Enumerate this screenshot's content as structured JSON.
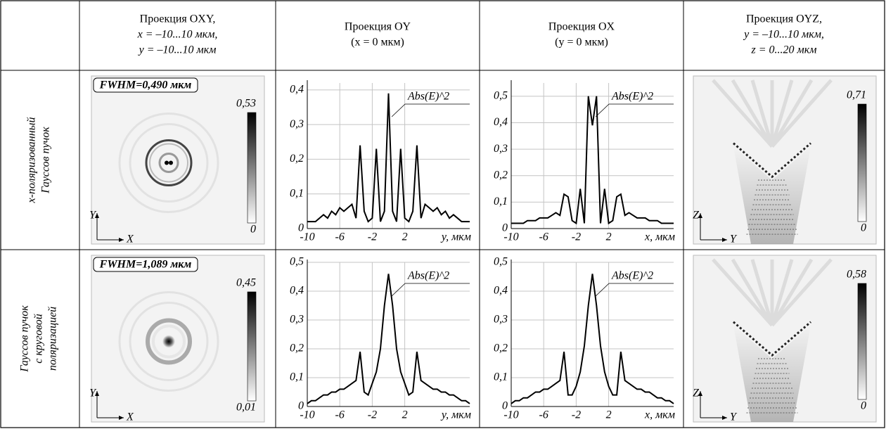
{
  "header": {
    "columns": [
      [
        "Проекция OXY,",
        "x = –10...10 мкм,",
        "y = –10...10 мкм"
      ],
      [
        "Проекция OY",
        "(x = 0 мкм)"
      ],
      [
        "Проекция OX",
        "(y = 0 мкм)"
      ],
      [
        "Проекция OYZ,",
        "y = –10...10 мкм,",
        "z = 0...20 мкм"
      ]
    ]
  },
  "rows": [
    {
      "label": [
        "x-поляризованный",
        "Гауссов пучок"
      ],
      "oxy": {
        "fwhm": "FWHM=0,490 мкм",
        "colorbar_max": "0,53",
        "colorbar_min": "0",
        "axis_x": "X",
        "axis_y": "Y"
      },
      "oy": {
        "type": "line",
        "color": "#000000",
        "legend": "Abs(E)^2",
        "x_label": "y, мкм",
        "x": [
          -10,
          -9.5,
          -9,
          -8.5,
          -8,
          -7.5,
          -7,
          -6.5,
          -6,
          -5.5,
          -5,
          -4.5,
          -4,
          -3.5,
          -3,
          -2.5,
          -2,
          -1.5,
          -1,
          -0.5,
          0,
          0.5,
          1,
          1.5,
          2,
          2.5,
          3,
          3.5,
          4,
          4.5,
          5,
          5.5,
          6,
          6.5,
          7,
          7.5,
          8,
          8.5,
          9,
          9.5,
          10
        ],
        "values": [
          0.02,
          0.02,
          0.02,
          0.03,
          0.04,
          0.03,
          0.05,
          0.04,
          0.06,
          0.05,
          0.06,
          0.07,
          0.03,
          0.24,
          0.05,
          0.02,
          0.03,
          0.23,
          0.02,
          0.05,
          0.39,
          0.05,
          0.02,
          0.23,
          0.03,
          0.02,
          0.05,
          0.24,
          0.03,
          0.07,
          0.06,
          0.05,
          0.06,
          0.04,
          0.05,
          0.03,
          0.04,
          0.03,
          0.02,
          0.02,
          0.02
        ],
        "xlim": [
          -10,
          10
        ],
        "ylim": [
          0,
          0.42
        ],
        "xticks": [
          -10,
          -6,
          -2,
          2
        ],
        "yticks": [
          0,
          {
            "value": 0.1,
            "label": "0,1"
          },
          {
            "value": 0.2,
            "label": "0,2"
          },
          {
            "value": 0.3,
            "label": "0,3"
          },
          {
            "value": 0.4,
            "label": "0,4"
          }
        ]
      },
      "ox": {
        "type": "line",
        "color": "#000000",
        "legend": "Abs(E)^2",
        "x_label": "x, мкм",
        "x": [
          -10,
          -9.5,
          -9,
          -8.5,
          -8,
          -7.5,
          -7,
          -6.5,
          -6,
          -5.5,
          -5,
          -4.5,
          -4,
          -3.5,
          -3,
          -2.5,
          -2,
          -1.5,
          -1,
          -0.5,
          0,
          0.5,
          1,
          1.5,
          2,
          2.5,
          3,
          3.5,
          4,
          4.5,
          5,
          5.5,
          6,
          6.5,
          7,
          7.5,
          8,
          8.5,
          9,
          9.5,
          10
        ],
        "values": [
          0.02,
          0.02,
          0.02,
          0.02,
          0.03,
          0.03,
          0.03,
          0.04,
          0.04,
          0.04,
          0.05,
          0.06,
          0.05,
          0.13,
          0.12,
          0.03,
          0.02,
          0.15,
          0.02,
          0.5,
          0.39,
          0.5,
          0.02,
          0.15,
          0.02,
          0.03,
          0.12,
          0.13,
          0.05,
          0.06,
          0.05,
          0.04,
          0.04,
          0.04,
          0.03,
          0.03,
          0.03,
          0.02,
          0.02,
          0.02,
          0.02
        ],
        "xlim": [
          -10,
          10
        ],
        "ylim": [
          0,
          0.55
        ],
        "xticks": [
          -10,
          -6,
          -2,
          2
        ],
        "yticks": [
          0,
          {
            "value": 0.1,
            "label": "0,1"
          },
          {
            "value": 0.2,
            "label": "0,2"
          },
          {
            "value": 0.3,
            "label": "0,3"
          },
          {
            "value": 0.4,
            "label": "0,4"
          },
          {
            "value": 0.5,
            "label": "0,5"
          }
        ]
      },
      "oyz": {
        "colorbar_max": "0,71",
        "colorbar_min": "0",
        "axis_z": "Z",
        "axis_y": "Y"
      }
    },
    {
      "label": [
        "Гауссов пучок",
        "с круговой",
        "поляризацией"
      ],
      "oxy": {
        "fwhm": "FWHM=1,089 мкм",
        "colorbar_max": "0,45",
        "colorbar_min": "0,01",
        "axis_x": "X",
        "axis_y": "Y"
      },
      "oy": {
        "type": "line",
        "color": "#000000",
        "legend": "Abs(E)^2",
        "x_label": "y, мкм",
        "x": [
          -10,
          -9.5,
          -9,
          -8.5,
          -8,
          -7.5,
          -7,
          -6.5,
          -6,
          -5.5,
          -5,
          -4.5,
          -4,
          -3.5,
          -3,
          -2.5,
          -2,
          -1.5,
          -1,
          -0.5,
          0,
          0.5,
          1,
          1.5,
          2,
          2.5,
          3,
          3.5,
          4,
          4.5,
          5,
          5.5,
          6,
          6.5,
          7,
          7.5,
          8,
          8.5,
          9,
          9.5,
          10
        ],
        "values": [
          0.01,
          0.02,
          0.02,
          0.03,
          0.04,
          0.04,
          0.05,
          0.05,
          0.06,
          0.06,
          0.07,
          0.08,
          0.09,
          0.19,
          0.05,
          0.04,
          0.08,
          0.12,
          0.2,
          0.35,
          0.46,
          0.35,
          0.2,
          0.12,
          0.08,
          0.04,
          0.05,
          0.19,
          0.09,
          0.08,
          0.07,
          0.06,
          0.06,
          0.05,
          0.05,
          0.04,
          0.04,
          0.03,
          0.02,
          0.02,
          0.01
        ],
        "xlim": [
          -10,
          10
        ],
        "ylim": [
          0,
          0.5
        ],
        "xticks": [
          -10,
          -6,
          -2,
          2
        ],
        "yticks": [
          0,
          {
            "value": 0.1,
            "label": "0,1"
          },
          {
            "value": 0.2,
            "label": "0,2"
          },
          {
            "value": 0.3,
            "label": "0,3"
          },
          {
            "value": 0.4,
            "label": "0,4"
          },
          {
            "value": 0.5,
            "label": "0,5"
          }
        ]
      },
      "ox": {
        "type": "line",
        "color": "#000000",
        "legend": "Abs(E)^2",
        "x_label": "x, мкм",
        "x": [
          -10,
          -9.5,
          -9,
          -8.5,
          -8,
          -7.5,
          -7,
          -6.5,
          -6,
          -5.5,
          -5,
          -4.5,
          -4,
          -3.5,
          -3,
          -2.5,
          -2,
          -1.5,
          -1,
          -0.5,
          0,
          0.5,
          1,
          1.5,
          2,
          2.5,
          3,
          3.5,
          4,
          4.5,
          5,
          5.5,
          6,
          6.5,
          7,
          7.5,
          8,
          8.5,
          9,
          9.5,
          10
        ],
        "values": [
          0.01,
          0.02,
          0.02,
          0.03,
          0.03,
          0.04,
          0.05,
          0.05,
          0.06,
          0.06,
          0.07,
          0.08,
          0.09,
          0.19,
          0.04,
          0.04,
          0.07,
          0.12,
          0.21,
          0.35,
          0.46,
          0.35,
          0.21,
          0.12,
          0.07,
          0.04,
          0.04,
          0.19,
          0.09,
          0.08,
          0.07,
          0.06,
          0.06,
          0.05,
          0.05,
          0.04,
          0.03,
          0.03,
          0.02,
          0.02,
          0.01
        ],
        "xlim": [
          -10,
          10
        ],
        "ylim": [
          0,
          0.5
        ],
        "xticks": [
          -10,
          -6,
          -2,
          2
        ],
        "yticks": [
          0,
          {
            "value": 0.1,
            "label": "0,1"
          },
          {
            "value": 0.2,
            "label": "0,2"
          },
          {
            "value": 0.3,
            "label": "0,3"
          },
          {
            "value": 0.4,
            "label": "0,4"
          },
          {
            "value": 0.5,
            "label": "0,5"
          }
        ]
      },
      "oyz": {
        "colorbar_max": "0,58",
        "colorbar_min": "0",
        "axis_z": "Z",
        "axis_y": "Y"
      }
    }
  ]
}
